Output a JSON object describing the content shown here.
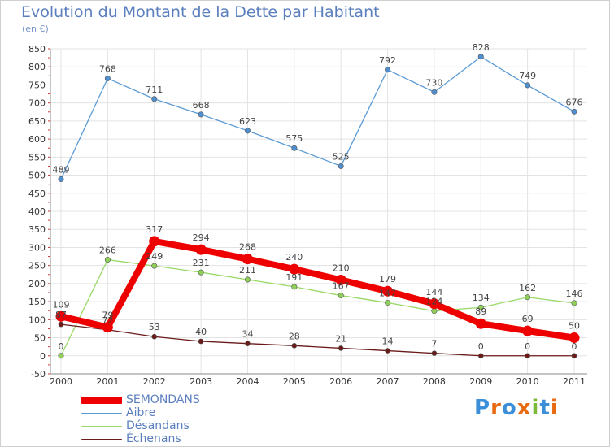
{
  "colors": {
    "SEMONDANS": "#ee0000",
    "Aibre": "#5b9bd5",
    "Désandans": "#99d966",
    "Échenans": "#6b1a1a",
    "grid": "#e3e3e3",
    "axis_text": "#333333",
    "title": "#5b7fbe",
    "legend_text": "#5b7fbe",
    "logo": [
      "#3b8fd8",
      "#e86a10",
      "#3b8fd8",
      "#e86a10",
      "#7cb83a",
      "#3b8fd8",
      "#e86a10"
    ]
  },
  "chart_data": {
    "type": "line",
    "title": "Evolution du Montant de la Dette par Habitant",
    "subtitle": "(en €)",
    "xlabel": "",
    "ylabel": "",
    "ylim": [
      -50,
      850
    ],
    "yticks": [
      -50,
      0,
      50,
      100,
      150,
      200,
      250,
      300,
      350,
      400,
      450,
      500,
      550,
      600,
      650,
      700,
      750,
      800,
      850
    ],
    "grid": true,
    "legend_position": "bottom-left",
    "categories": [
      "2000",
      "2001",
      "2002",
      "2003",
      "2004",
      "2005",
      "2006",
      "2007",
      "2008",
      "2009",
      "2010",
      "2011"
    ],
    "series": [
      {
        "name": "Aibre",
        "values": [
          489,
          768,
          711,
          668,
          623,
          575,
          525,
          792,
          730,
          828,
          749,
          676
        ]
      },
      {
        "name": "Désandans",
        "values": [
          0,
          266,
          249,
          231,
          211,
          191,
          167,
          147,
          124,
          134,
          162,
          146
        ]
      },
      {
        "name": "Échenans",
        "values": [
          87,
          72,
          53,
          40,
          34,
          28,
          21,
          14,
          7,
          0,
          0,
          0
        ]
      },
      {
        "name": "SEMONDANS",
        "values": [
          109,
          79,
          317,
          294,
          268,
          240,
          210,
          179,
          144,
          89,
          69,
          50
        ]
      }
    ]
  },
  "legend": {
    "items": [
      {
        "label": "SEMONDANS"
      },
      {
        "label": "Aibre"
      },
      {
        "label": "Désandans"
      },
      {
        "label": "Échenans"
      }
    ]
  },
  "brand": {
    "text": "Proxiti",
    "icon": "magnifier-icon"
  }
}
